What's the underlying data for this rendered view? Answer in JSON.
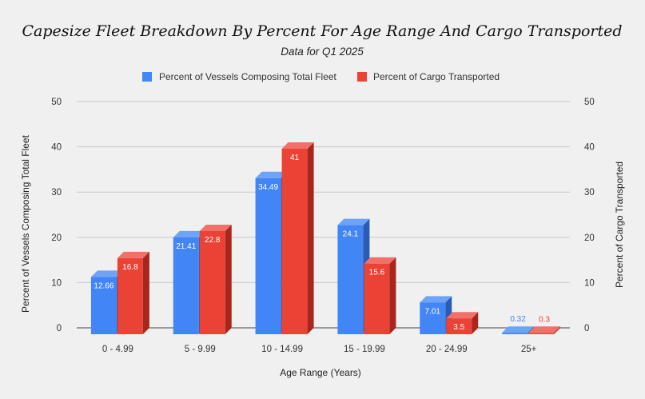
{
  "chart_data": {
    "type": "bar",
    "title": "Capesize Fleet Breakdown By Percent For Age Range And Cargo Transported",
    "subtitle": "Data for Q1 2025",
    "xlabel": "Age Range (Years)",
    "ylabel": "Percent of Vessels  Composing Total Fleet",
    "y2label": "Percent of Cargo Transported",
    "categories": [
      "0 - 4.99",
      "5 - 9.99",
      "10 - 14.99",
      "15 - 19.99",
      "20 - 24.99",
      "25+"
    ],
    "series": [
      {
        "name": "Percent of Vessels Composing Total Fleet",
        "labels": [
          "12.66",
          "21.41",
          "34.49",
          "24.1",
          "7.01",
          "0.32"
        ],
        "values": [
          12.66,
          21.41,
          34.49,
          24.1,
          7.01,
          0.32
        ],
        "color": "#4285f4",
        "side_color": "#2a5cb4",
        "top_color": "#6fa3f7"
      },
      {
        "name": "Percent of Cargo Transported",
        "labels": [
          "16.8",
          "22.8",
          "41",
          "15.6",
          "3.5",
          "0.3"
        ],
        "values": [
          16.8,
          22.8,
          41,
          15.6,
          3.5,
          0.3
        ],
        "color": "#ea4335",
        "side_color": "#a8271c",
        "top_color": "#f0716a"
      }
    ],
    "ylim": [
      0,
      50
    ],
    "yticks": [
      "0",
      "10",
      "20",
      "30",
      "40",
      "50"
    ],
    "y2ticks": [
      "0",
      "10",
      "20",
      "30",
      "40",
      "50"
    ],
    "grid": true,
    "legend_position": "top-center"
  }
}
